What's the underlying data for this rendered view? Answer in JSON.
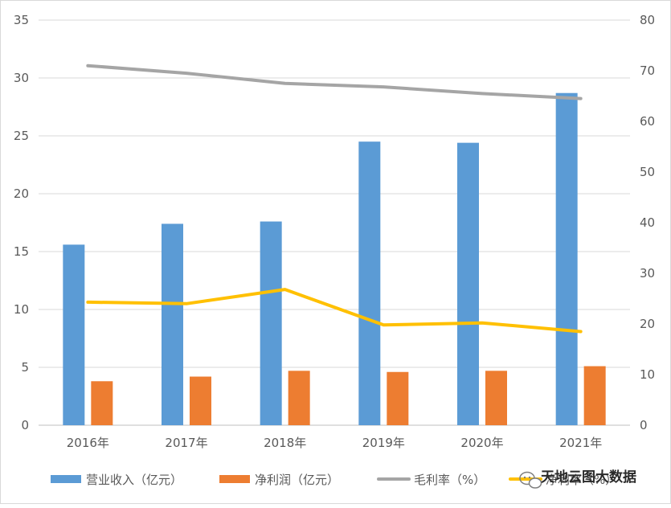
{
  "chart_data": {
    "type": "bar",
    "title": "",
    "categories": [
      "2016年",
      "2017年",
      "2018年",
      "2019年",
      "2020年",
      "2021年"
    ],
    "series": [
      {
        "name": "营业收入（亿元）",
        "type": "bar",
        "axis": "left",
        "color": "#5b9bd5",
        "values": [
          15.6,
          17.4,
          17.6,
          24.5,
          24.4,
          28.7
        ]
      },
      {
        "name": "净利润（亿元）",
        "type": "bar",
        "axis": "left",
        "color": "#ed7d31",
        "values": [
          3.8,
          4.2,
          4.7,
          4.6,
          4.7,
          5.1
        ]
      },
      {
        "name": "毛利率（%）",
        "type": "line",
        "axis": "right",
        "color": "#a5a5a5",
        "values": [
          71.0,
          69.5,
          67.5,
          66.8,
          65.5,
          64.5
        ]
      },
      {
        "name": "净利率（%）",
        "type": "line",
        "axis": "right",
        "color": "#ffc000",
        "values": [
          24.3,
          24.0,
          26.8,
          19.8,
          20.2,
          18.5
        ]
      }
    ],
    "y_left": {
      "min": 0,
      "max": 35,
      "step": 5,
      "ticks": [
        "0",
        "5",
        "10",
        "15",
        "20",
        "25",
        "30",
        "35"
      ]
    },
    "y_right": {
      "min": 0,
      "max": 80,
      "step": 10,
      "ticks": [
        "0",
        "10",
        "20",
        "30",
        "40",
        "50",
        "60",
        "70",
        "80"
      ]
    },
    "grid": true,
    "legend_position": "bottom"
  },
  "watermark": {
    "text": "天地云图大数据",
    "icon": "wechat-icon"
  }
}
